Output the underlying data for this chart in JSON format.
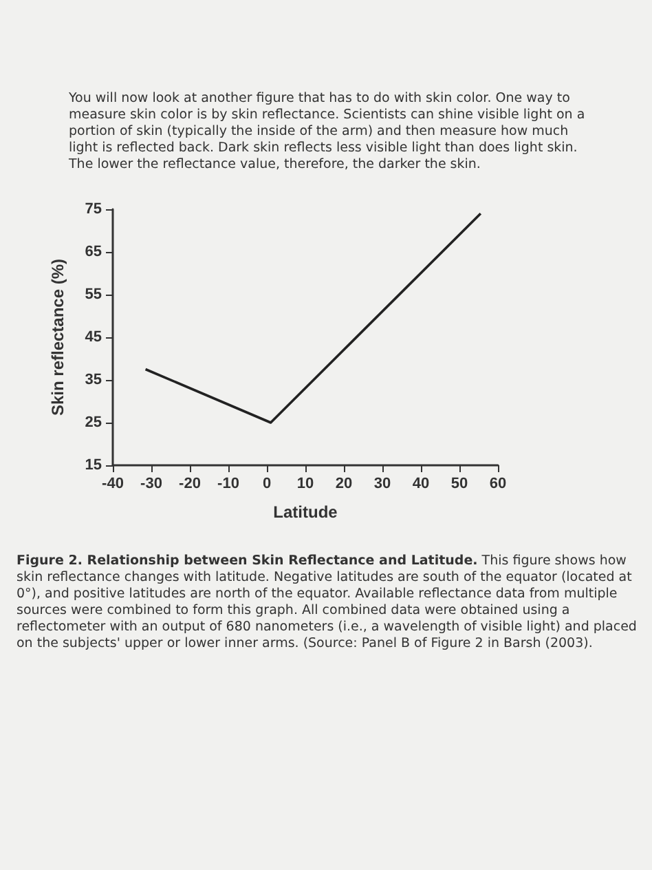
{
  "chart_data": {
    "type": "line",
    "title": "Figure 2. Relationship between Skin Reflectance and Latitude.",
    "xlabel": "Latitude",
    "ylabel": "Skin reflectance (%)",
    "x": [
      -31.5,
      1,
      55.5
    ],
    "series": [
      {
        "color": "#222222",
        "values": [
          37.5,
          25,
          74
        ]
      }
    ],
    "xlim": [
      -40,
      60
    ],
    "xticks": [
      -40,
      -30,
      -20,
      -10,
      0,
      10,
      20,
      30,
      40,
      50,
      60
    ],
    "ylim": [
      15,
      75
    ],
    "yticks": [
      15,
      25,
      35,
      45,
      55,
      65,
      75
    ],
    "grid": false,
    "marker": "none",
    "line_style": "solid",
    "annotations": [
      "You will now look at another figure that has to do with skin color. One way to measure skin color is by skin reflectance. Scientists can shine visible light on a portion of skin (typically the inside of the arm) and then measure how much light is reflected back. Dark skin reflects less visible light than does light skin. The lower the reflectance value, therefore, the darker the skin.",
      "This figure shows how skin reflectance changes with latitude. Negative latitudes are south of the equator (located at 0°), and positive latitudes are north of the equator. Available reflectance data from multiple sources were combined to form this graph. All combined data were obtained using a reflectometer with an output of 680 nanometers (i.e., a wavelength of visible light) and placed on the subjects' upper or lower inner arms. (Source: Panel B of Figure 2 in Barsh (2003)."
    ]
  }
}
